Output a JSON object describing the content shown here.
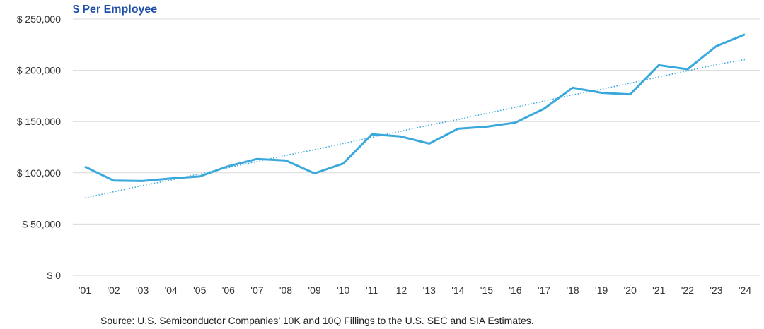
{
  "chart_data": {
    "type": "line",
    "title": "$ Per Employee",
    "xlabel": "",
    "ylabel": "",
    "categories": [
      "'01",
      "'02",
      "'03",
      "'04",
      "'05",
      "'06",
      "'07",
      "'08",
      "'09",
      "'10",
      "'11",
      "'12",
      "'13",
      "'14",
      "'15",
      "'16",
      "'17",
      "'18",
      "'19",
      "'20",
      "'21",
      "'22",
      "'23",
      "'24"
    ],
    "y_tick_labels": [
      "$ 0",
      "$ 50,000",
      "$ 100,000",
      "$ 150,000",
      "$ 200,000",
      "$ 250,000"
    ],
    "y_ticks": [
      0,
      50000,
      100000,
      150000,
      200000,
      250000
    ],
    "ylim": [
      0,
      250000
    ],
    "grid": true,
    "series": [
      {
        "values": [
          106000,
          92500,
          92000,
          94500,
          96500,
          106500,
          113500,
          112000,
          99500,
          109000,
          137500,
          135500,
          128500,
          143000,
          145000,
          149000,
          162500,
          183000,
          178000,
          176500,
          205000,
          201000,
          223500,
          235000
        ],
        "color": "#3aa8dc",
        "style": "solid"
      },
      {
        "values": [
          75500,
          81500,
          87500,
          93000,
          99000,
          105000,
          111000,
          117000,
          122500,
          128500,
          134500,
          140500,
          146500,
          152000,
          158000,
          164000,
          170000,
          176000,
          181500,
          187500,
          193500,
          199500,
          205500,
          210500
        ],
        "color": "#3aa8dc",
        "style": "dotted"
      }
    ],
    "source": "Source: U.S. Semiconductor Companies’ 10K and 10Q Fillings to the U.S. SEC and SIA Estimates.",
    "colors": {
      "title": "#1f4fa8",
      "grid": "#d9d9d9",
      "axis_text": "#333333"
    }
  }
}
